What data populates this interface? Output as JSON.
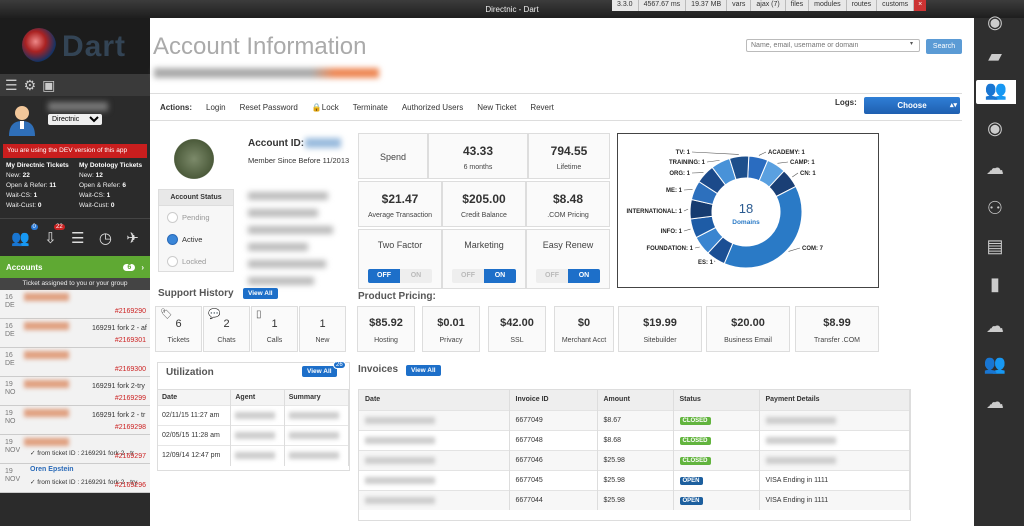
{
  "window": {
    "title": "Directnic - Dart",
    "stats": [
      "3.3.0",
      "4567.67 ms",
      "19.37 MB",
      "vars",
      "ajax (7)",
      "files",
      "modules",
      "routes",
      "customs"
    ]
  },
  "app": {
    "logo_text": "Dart"
  },
  "sidebar": {
    "user": {
      "org_select": "Directnic"
    },
    "dev_warning": "You are using the DEV version of this app",
    "my_tickets": {
      "title": "My Directnic Tickets",
      "new_label": "New:",
      "new_value": "22",
      "open_label": "Open & Refer:",
      "open_value": "11",
      "waitcs_label": "Wait-CS:",
      "waitcs_value": "1",
      "waitcust_label": "Wait-Cust:",
      "waitcust_value": "0"
    },
    "dotology_tickets": {
      "title": "My Dotology Tickets",
      "new_label": "New:",
      "new_value": "12",
      "open_label": "Open & Refer:",
      "open_value": "6",
      "waitcs_label": "Wait-CS:",
      "waitcs_value": "1",
      "waitcust_label": "Wait-Cust:",
      "waitcust_value": "0"
    },
    "icon_badges": {
      "users": "0",
      "inbox": "22"
    },
    "accounts_label": "Accounts",
    "accounts_count": "6",
    "assigned_text": "Ticket assigned to you or your group",
    "tickets": [
      {
        "day": "16",
        "mon": "DE",
        "text": "",
        "num": "#2169290"
      },
      {
        "day": "16",
        "mon": "DE",
        "text": "169291 fork 2 - af",
        "num": "#2169301"
      },
      {
        "day": "16",
        "mon": "DE",
        "text": "",
        "num": "#2169300"
      },
      {
        "day": "19",
        "mon": "NO",
        "text": "169291 fork 2-try",
        "num": "#2169299"
      },
      {
        "day": "19",
        "mon": "NO",
        "text": "169291 fork 2 - tr",
        "num": "#2169298"
      },
      {
        "day": "19",
        "mon": "NOV",
        "text": "from ticket ID : 2169291 fork 2 - tr",
        "num": "#2169297"
      },
      {
        "day": "19",
        "mon": "NOV",
        "name": "Oren Epstein",
        "text": "from ticket ID : 2169291 fork 2 - try",
        "num": "#2169296"
      }
    ]
  },
  "header": {
    "title": "Account Information",
    "search_placeholder": "Name, email, username or domain",
    "search_button": "Search"
  },
  "actions": {
    "label": "Actions:",
    "items": [
      "Login",
      "Reset Password",
      "Lock",
      "Terminate",
      "Authorized Users",
      "New Ticket",
      "Revert"
    ],
    "logs_label": "Logs:",
    "logs_choose": "Choose"
  },
  "account": {
    "id_label": "Account ID:",
    "member_since": "Member Since Before 11/2013",
    "status_title": "Account Status",
    "status_options": [
      "Pending",
      "Active",
      "Locked"
    ]
  },
  "spend": {
    "label": "Spend",
    "six_months_value": "43.33",
    "six_months_label": "6 months",
    "lifetime_value": "794.55",
    "lifetime_label": "Lifetime",
    "avg_value": "$21.47",
    "avg_label": "Average Transaction",
    "credit_value": "$205.00",
    "credit_label": "Credit Balance",
    "com_value": "$8.48",
    "com_label": ".COM Pricing"
  },
  "toggles": [
    {
      "label": "Two Factor",
      "off": "OFF",
      "on": "ON",
      "state": "off"
    },
    {
      "label": "Marketing",
      "off": "OFF",
      "on": "ON",
      "state": "on"
    },
    {
      "label": "Easy Renew",
      "off": "OFF",
      "on": "ON",
      "state": "on"
    }
  ],
  "chart_data": {
    "type": "pie",
    "title": "Domains",
    "total": "18",
    "center_label": "Domains",
    "categories": [
      "TV",
      "ACADEMY",
      "CAMP",
      "CN",
      "COM",
      "ES",
      "FOUNDATION",
      "INFO",
      "INTERNATIONAL",
      "ME",
      "ORG",
      "TRAINING"
    ],
    "values": [
      1,
      1,
      1,
      1,
      7,
      1,
      1,
      1,
      1,
      1,
      1,
      1
    ],
    "labels": [
      "TV: 1",
      "ACADEMY: 1",
      "CAMP: 1",
      "CN: 1",
      "COM: 7",
      "ES: 1",
      "FOUNDATION: 1",
      "INFO: 1",
      "INTERNATIONAL: 1",
      "ME: 1",
      "ORG: 1",
      "TRAINING: 1"
    ],
    "colors": [
      "#1d4f8c",
      "#2a6cc0",
      "#5aa0e0",
      "#1a3f75",
      "#2a7ac6",
      "#1b4f94",
      "#3a85d0",
      "#1e5ca6",
      "#163c70",
      "#2d70bd",
      "#1c4a8a",
      "#4892d8"
    ]
  },
  "support": {
    "title": "Support History",
    "view_all": "View All",
    "cards": [
      {
        "value": "6",
        "label": "Tickets"
      },
      {
        "value": "2",
        "label": "Chats"
      },
      {
        "value": "1",
        "label": "Calls"
      },
      {
        "value": "1",
        "label": "New"
      }
    ]
  },
  "utilization": {
    "title": "Utilization",
    "view_all": "View All",
    "badge": "26",
    "columns": [
      "Date",
      "Agent",
      "Summary"
    ],
    "rows": [
      {
        "date": "02/11/15 11:27 am"
      },
      {
        "date": "02/05/15 11:28 am"
      },
      {
        "date": "12/09/14 12:47 pm"
      }
    ]
  },
  "pricing": {
    "title": "Product Pricing:",
    "items": [
      {
        "value": "$85.92",
        "label": "Hosting"
      },
      {
        "value": "$0.01",
        "label": "Privacy"
      },
      {
        "value": "$42.00",
        "label": "SSL"
      },
      {
        "value": "$0",
        "label": "Merchant Acct"
      },
      {
        "value": "$19.99",
        "label": "Sitebuilder"
      },
      {
        "value": "$20.00",
        "label": "Business Email"
      },
      {
        "value": "$8.99",
        "label": "Transfer .COM"
      }
    ]
  },
  "invoices": {
    "title": "Invoices",
    "view_all": "View All",
    "columns": [
      "Date",
      "Invoice ID",
      "Amount",
      "Status",
      "Payment Details"
    ],
    "rows": [
      {
        "id": "6677049",
        "amount": "$8.67",
        "status": "CLOSED",
        "details": ""
      },
      {
        "id": "6677048",
        "amount": "$8.68",
        "status": "CLOSED",
        "details": ""
      },
      {
        "id": "6677046",
        "amount": "$25.98",
        "status": "CLOSED",
        "details": ""
      },
      {
        "id": "6677045",
        "amount": "$25.98",
        "status": "OPEN",
        "details": "VISA Ending in 1111"
      },
      {
        "id": "6677044",
        "amount": "$25.98",
        "status": "OPEN",
        "details": "VISA Ending in 1111"
      }
    ]
  }
}
